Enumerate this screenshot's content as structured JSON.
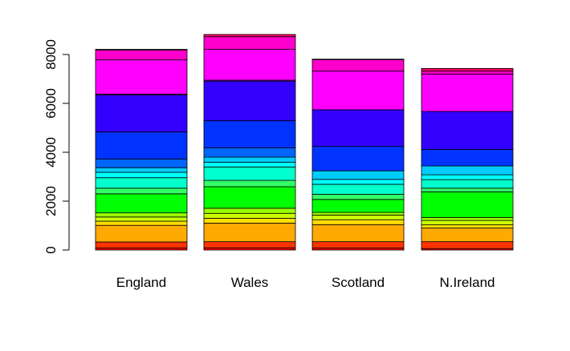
{
  "chart_data": {
    "type": "bar",
    "stacked": true,
    "title": "",
    "xlabel": "",
    "ylabel": "",
    "ylim": [
      0,
      8600
    ],
    "y_ticks": [
      0,
      2000,
      4000,
      6000,
      8000
    ],
    "y_tick_labels": [
      "0",
      "2000",
      "4000",
      "6000",
      "8000"
    ],
    "categories": [
      "England",
      "Wales",
      "Scotland",
      "N.Ireland"
    ],
    "grid": false,
    "legend": "none",
    "series": [
      {
        "color": "#ff0000",
        "values": [
          80,
          90,
          80,
          60
        ]
      },
      {
        "color": "#ff3300",
        "values": [
          250,
          250,
          260,
          280
        ]
      },
      {
        "color": "#ffaa00",
        "values": [
          680,
          760,
          700,
          560
        ]
      },
      {
        "color": "#ffdd00",
        "values": [
          170,
          200,
          200,
          130
        ]
      },
      {
        "color": "#ccff00",
        "values": [
          170,
          200,
          190,
          180
        ]
      },
      {
        "color": "#99ff00",
        "values": [
          170,
          210,
          110,
          120
        ]
      },
      {
        "color": "#00ff00",
        "values": [
          780,
          880,
          530,
          1050
        ]
      },
      {
        "color": "#33ff66",
        "values": [
          230,
          260,
          210,
          150
        ]
      },
      {
        "color": "#00ffcc",
        "values": [
          430,
          550,
          410,
          350
        ]
      },
      {
        "color": "#00ffff",
        "values": [
          220,
          190,
          200,
          200
        ]
      },
      {
        "color": "#00ccff",
        "values": [
          190,
          210,
          350,
          360
        ]
      },
      {
        "color": "#0066ff",
        "values": [
          350,
          380,
          0,
          0
        ]
      },
      {
        "color": "#0033ff",
        "values": [
          1110,
          1110,
          1000,
          680
        ]
      },
      {
        "color": "#3300ff",
        "values": [
          1510,
          1620,
          1500,
          1550
        ]
      },
      {
        "color": "#cc00ff",
        "values": [
          40,
          40,
          0,
          0
        ]
      },
      {
        "color": "#ff00ff",
        "values": [
          1400,
          1260,
          1580,
          1530
        ]
      },
      {
        "color": "#ff00cc",
        "values": [
          400,
          520,
          470,
          120
        ]
      },
      {
        "color": "#ff0066",
        "values": [
          30,
          90,
          20,
          110
        ]
      }
    ]
  }
}
